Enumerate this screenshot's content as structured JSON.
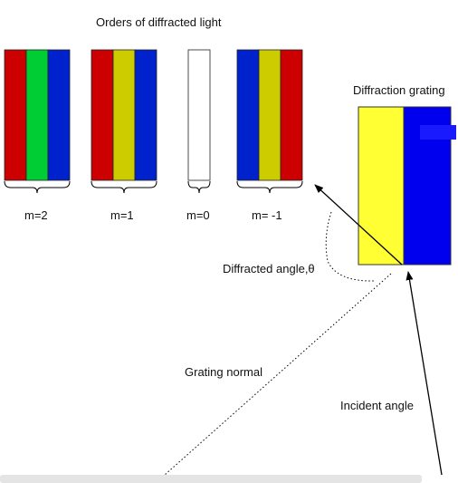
{
  "title": "Orders of  diffracted light",
  "grating": {
    "label": "Diffraction grating",
    "colors": [
      "#ffff33",
      "#0000ee"
    ]
  },
  "orders": [
    {
      "label": "m=2",
      "stripes": [
        "#cc0000",
        "#00cc33",
        "#0022cc"
      ]
    },
    {
      "label": "m=1",
      "stripes": [
        "#cc0000",
        "#cccc00",
        "#0022cc"
      ]
    },
    {
      "label": "m=0",
      "stripes": [
        "#ffffff"
      ]
    },
    {
      "label": "m= -1",
      "stripes": [
        "#0022cc",
        "#cccc00",
        "#cc0000"
      ]
    }
  ],
  "labels": {
    "diffracted_angle": "Diffracted angle,θ",
    "grating_normal": "Grating normal",
    "incident_angle": "Incident angle"
  }
}
